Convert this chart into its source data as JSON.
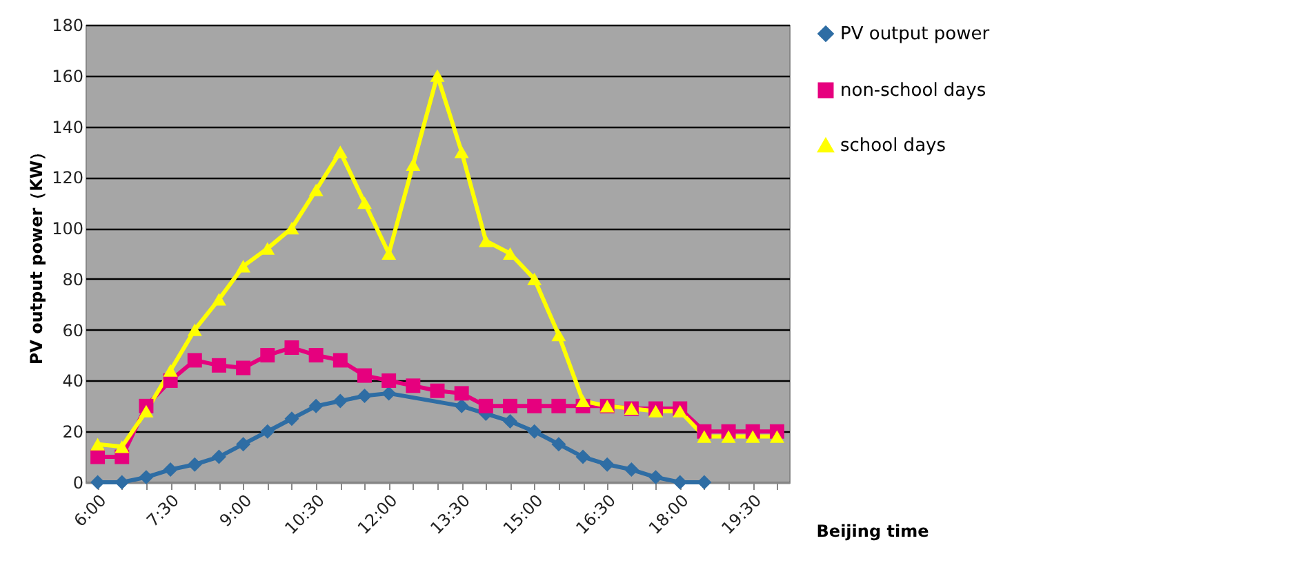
{
  "chart_data": {
    "type": "line",
    "ylabel": "PV output power（KW）",
    "xlabel": "Beijing time",
    "categories": [
      "6:00",
      null,
      null,
      "7:30",
      null,
      null,
      "9:00",
      null,
      null,
      "10:30",
      null,
      null,
      "12:00",
      null,
      null,
      "13:30",
      null,
      null,
      "15:00",
      null,
      null,
      "16:30",
      null,
      null,
      "18:00",
      null,
      null,
      "19:30",
      null
    ],
    "series": [
      {
        "name": "PV output power",
        "color": "#2e6da4",
        "marker": "diamond",
        "values": [
          0,
          0,
          2,
          5,
          7,
          10,
          15,
          20,
          25,
          30,
          32,
          34,
          35,
          null,
          null,
          30,
          27,
          24,
          20,
          15,
          10,
          7,
          5,
          2,
          0,
          0,
          null,
          null,
          null
        ]
      },
      {
        "name": "non-school days",
        "color": "#e6007e",
        "marker": "square",
        "values": [
          10,
          10,
          30,
          40,
          48,
          46,
          45,
          50,
          53,
          50,
          48,
          42,
          40,
          38,
          36,
          35,
          30,
          30,
          30,
          30,
          30,
          30,
          29,
          29,
          29,
          20,
          20,
          20,
          20
        ]
      },
      {
        "name": "school days",
        "color": "#ffff00",
        "marker": "triangle",
        "values": [
          15,
          14,
          28,
          44,
          60,
          72,
          85,
          92,
          100,
          115,
          130,
          110,
          90,
          125,
          160,
          130,
          95,
          90,
          80,
          58,
          32,
          30,
          29,
          28,
          28,
          18,
          18,
          18,
          18
        ]
      }
    ],
    "ylim": [
      0,
      180
    ],
    "yticks": [
      0,
      20,
      40,
      60,
      80,
      100,
      120,
      140,
      160,
      180
    ],
    "grid": "y",
    "legend": "right"
  }
}
